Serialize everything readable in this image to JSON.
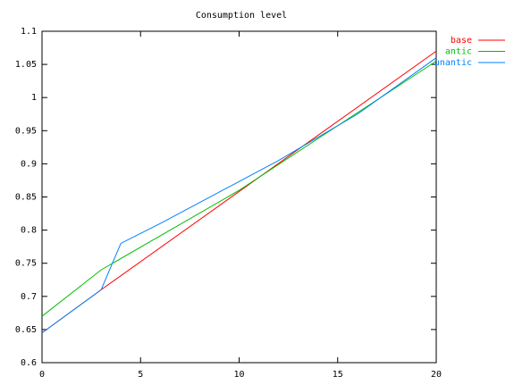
{
  "chart_data": {
    "type": "line",
    "title": "Consumption level",
    "xlim": [
      0,
      20
    ],
    "xticks": [
      0,
      5,
      10,
      15,
      20
    ],
    "ylim": [
      0.6,
      1.1
    ],
    "yticks": [
      0.6,
      0.65,
      0.7,
      0.75,
      0.8,
      0.85,
      0.9,
      0.95,
      1,
      1.05,
      1.1
    ],
    "legend": "top-right",
    "series": [
      {
        "name": "base",
        "color": "#ff0000",
        "x": [
          0,
          3,
          20
        ],
        "values": [
          0.645,
          0.71,
          1.07
        ]
      },
      {
        "name": "antic",
        "color": "#00c000",
        "x": [
          0,
          3,
          10,
          20
        ],
        "values": [
          0.67,
          0.74,
          0.86,
          1.055
        ]
      },
      {
        "name": "unantic",
        "color": "#0080ff",
        "x": [
          0,
          3,
          4,
          6,
          12,
          16,
          20
        ],
        "values": [
          0.645,
          0.71,
          0.78,
          0.81,
          0.905,
          0.975,
          1.06
        ]
      }
    ]
  }
}
